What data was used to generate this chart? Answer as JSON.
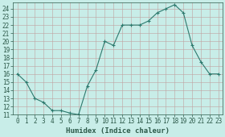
{
  "xlabel": "Humidex (Indice chaleur)",
  "hours": [
    0,
    1,
    2,
    3,
    4,
    5,
    6,
    7,
    8,
    9,
    10,
    11,
    12,
    13,
    14,
    15,
    16,
    17,
    18,
    19,
    20,
    21,
    22,
    23
  ],
  "values": [
    16,
    15,
    13,
    12.5,
    11.5,
    11.5,
    11.2,
    11,
    14.5,
    16.5,
    20,
    19.5,
    22,
    22,
    22,
    22.5,
    23.5,
    24,
    24.5,
    23.5,
    19.5,
    17.5,
    16,
    16
  ],
  "ylim": [
    11,
    24.8
  ],
  "yticks": [
    11,
    12,
    13,
    14,
    15,
    16,
    17,
    18,
    19,
    20,
    21,
    22,
    23,
    24
  ],
  "xlim": [
    -0.5,
    23.5
  ],
  "line_color": "#2d7a6e",
  "bg_color": "#c8ede8",
  "grid_color": "#b0c8c4",
  "axis_color": "#2d5a4a",
  "label_fontsize": 6.5,
  "tick_fontsize": 5.5
}
